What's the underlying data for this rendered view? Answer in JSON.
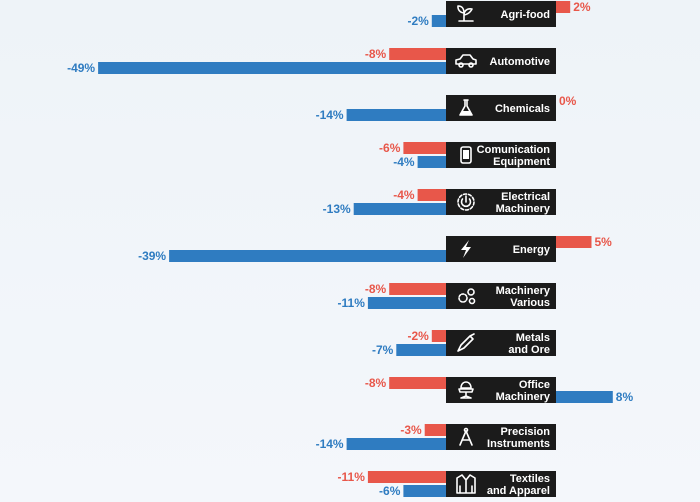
{
  "chart_data": {
    "type": "bar",
    "orientation": "horizontal-diverging",
    "colors": {
      "series_a": "#e8574a",
      "series_b": "#2f7cc1",
      "label_box": "#1b1b1b"
    },
    "categories": [
      {
        "label": [
          "Agri-food"
        ],
        "icon": "plant-icon",
        "a": 2,
        "b": -2,
        "a_text": "2%",
        "b_text": "-2%"
      },
      {
        "label": [
          "Automotive"
        ],
        "icon": "car-icon",
        "a": -8,
        "b": -49,
        "a_text": "-8%",
        "b_text": "-49%"
      },
      {
        "label": [
          "Chemicals"
        ],
        "icon": "flask-icon",
        "a": 0,
        "b": -14,
        "a_text": "0%",
        "b_text": "-14%"
      },
      {
        "label": [
          "Comunication",
          "Equipment"
        ],
        "icon": "phone-icon",
        "a": -6,
        "b": -4,
        "a_text": "-6%",
        "b_text": "-4%"
      },
      {
        "label": [
          "Electrical",
          "Machinery"
        ],
        "icon": "power-icon",
        "a": -4,
        "b": -13,
        "a_text": "-4%",
        "b_text": "-13%"
      },
      {
        "label": [
          "Energy"
        ],
        "icon": "lightning-icon",
        "a": 5,
        "b": -39,
        "a_text": "5%",
        "b_text": "-39%"
      },
      {
        "label": [
          "Machinery",
          "Various"
        ],
        "icon": "gears-icon",
        "a": -8,
        "b": -11,
        "a_text": "-8%",
        "b_text": "-11%"
      },
      {
        "label": [
          "Metals",
          "and Ore"
        ],
        "icon": "tool-icon",
        "a": -2,
        "b": -7,
        "a_text": "-2%",
        "b_text": "-7%"
      },
      {
        "label": [
          "Office",
          "Machinery"
        ],
        "icon": "chair-icon",
        "a": -8,
        "b": 8,
        "a_text": "-8%",
        "b_text": "8%"
      },
      {
        "label": [
          "Precision",
          "Instruments"
        ],
        "icon": "compass-icon",
        "a": -3,
        "b": -14,
        "a_text": "-3%",
        "b_text": "-14%"
      },
      {
        "label": [
          "Textiles",
          "and Apparel"
        ],
        "icon": "jacket-icon",
        "a": -11,
        "b": -6,
        "a_text": "-11%",
        "b_text": "-6%"
      }
    ]
  }
}
